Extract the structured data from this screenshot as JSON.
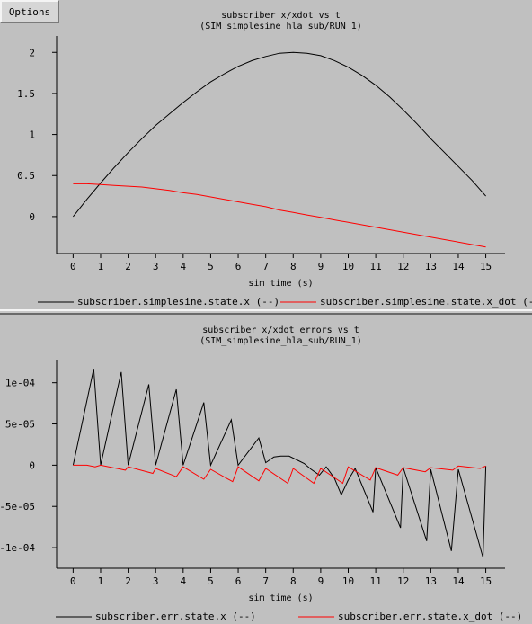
{
  "options_label": "Options",
  "colors": {
    "background": "#c0c0c0",
    "series_1": "#000000",
    "series_2": "#ff0000"
  },
  "chart_data": [
    {
      "type": "line",
      "title": "subscriber x/xdot vs t",
      "subtitle": "(SIM_simplesine_hla_sub/RUN_1)",
      "xlabel": "sim time (s)",
      "ylabel": "",
      "xlim": [
        -0.6,
        15.7
      ],
      "ylim": [
        -0.45,
        2.2
      ],
      "x_ticks": [
        0,
        1,
        2,
        3,
        4,
        5,
        6,
        7,
        8,
        9,
        10,
        11,
        12,
        13,
        14,
        15
      ],
      "x_tick_labels": [
        "0",
        "1",
        "2",
        "3",
        "4",
        "5",
        "6",
        "7",
        "8",
        "9",
        "10",
        "11",
        "12",
        "13",
        "14",
        "15"
      ],
      "y_ticks": [
        0,
        0.5,
        1,
        1.5,
        2
      ],
      "y_tick_labels": [
        "0",
        "0.5",
        "1",
        "1.5",
        "2"
      ],
      "grid": false,
      "legend_position": "bottom",
      "series": [
        {
          "name": "subscriber.simplesine.state.x (--)",
          "color": "#000000",
          "x": [
            0,
            0.5,
            1,
            1.5,
            2,
            2.5,
            3,
            3.5,
            4,
            4.5,
            5,
            5.5,
            6,
            6.5,
            7,
            7.5,
            8,
            8.5,
            9,
            9.5,
            10,
            10.5,
            11,
            11.5,
            12,
            12.5,
            13,
            13.5,
            14,
            14.5,
            15
          ],
          "y": [
            0,
            0.21,
            0.41,
            0.6,
            0.78,
            0.95,
            1.11,
            1.25,
            1.39,
            1.52,
            1.64,
            1.74,
            1.83,
            1.9,
            1.95,
            1.99,
            2.0,
            1.99,
            1.96,
            1.9,
            1.82,
            1.72,
            1.6,
            1.46,
            1.3,
            1.13,
            0.95,
            0.78,
            0.61,
            0.44,
            0.25
          ]
        },
        {
          "name": "subscriber.simplesine.state.x_dot (--)",
          "color": "#ff0000",
          "x": [
            0,
            0.5,
            1,
            1.5,
            2,
            2.5,
            3,
            3.5,
            4,
            4.5,
            5,
            5.5,
            6,
            6.5,
            7,
            7.5,
            8,
            8.5,
            9,
            9.5,
            10,
            10.5,
            11,
            11.5,
            12,
            12.5,
            13,
            13.5,
            14,
            14.5,
            15
          ],
          "y": [
            0.4,
            0.4,
            0.39,
            0.38,
            0.37,
            0.36,
            0.34,
            0.32,
            0.29,
            0.27,
            0.24,
            0.21,
            0.18,
            0.15,
            0.12,
            0.08,
            0.05,
            0.02,
            -0.01,
            -0.04,
            -0.07,
            -0.1,
            -0.13,
            -0.16,
            -0.19,
            -0.22,
            -0.25,
            -0.28,
            -0.31,
            -0.34,
            -0.37
          ]
        }
      ]
    },
    {
      "type": "line",
      "title": "subscriber x/xdot errors vs t",
      "subtitle": "(SIM_simplesine_hla_sub/RUN_1)",
      "xlabel": "sim time (s)",
      "ylabel": "",
      "xlim": [
        -0.6,
        15.7
      ],
      "ylim": [
        -0.000125,
        0.000128
      ],
      "x_ticks": [
        0,
        1,
        2,
        3,
        4,
        5,
        6,
        7,
        8,
        9,
        10,
        11,
        12,
        13,
        14,
        15
      ],
      "x_tick_labels": [
        "0",
        "1",
        "2",
        "3",
        "4",
        "5",
        "6",
        "7",
        "8",
        "9",
        "10",
        "11",
        "12",
        "13",
        "14",
        "15"
      ],
      "y_ticks": [
        -0.0001,
        -5e-05,
        0,
        5e-05,
        0.0001
      ],
      "y_tick_labels": [
        "-1e-04",
        "-5e-05",
        "0",
        "5e-05",
        "1e-04"
      ],
      "grid": false,
      "legend_position": "bottom",
      "series": [
        {
          "name": "subscriber.err.state.x (--)",
          "color": "#000000",
          "x": [
            0,
            0.75,
            1,
            1.75,
            2,
            2.75,
            3,
            3.75,
            4,
            4.75,
            5,
            5.75,
            6,
            6.75,
            7,
            7.3,
            7.55,
            7.85,
            8.1,
            8.4,
            8.65,
            8.95,
            9.2,
            9.5,
            9.75,
            10,
            10.25,
            10.9,
            11,
            11.9,
            12,
            12.85,
            13,
            13.75,
            14,
            14.9,
            15
          ],
          "y": [
            0,
            0.000117,
            0,
            0.000113,
            0,
            9.8e-05,
            0,
            9.2e-05,
            0,
            7.6e-05,
            0,
            5.5e-05,
            0,
            3.3e-05,
            3e-06,
            1e-05,
            1.1e-05,
            1.1e-05,
            7e-06,
            2e-06,
            -5e-06,
            -1.2e-05,
            -2e-06,
            -1.6e-05,
            -3.6e-05,
            -1.8e-05,
            -4e-06,
            -5.7e-05,
            -3e-06,
            -7.6e-05,
            -3e-06,
            -9.2e-05,
            -5e-06,
            -0.000104,
            -5e-06,
            -0.000112,
            -1e-06
          ]
        },
        {
          "name": "subscriber.err.state.x_dot (--)",
          "color": "#ff0000",
          "x": [
            0,
            0.5,
            0.8,
            1,
            1.9,
            2,
            2.9,
            3,
            3.75,
            4,
            4.75,
            5,
            5.8,
            6,
            6.75,
            7,
            7.8,
            8,
            8.75,
            9,
            9.8,
            10,
            10.8,
            11,
            11.8,
            12,
            12.8,
            13,
            13.8,
            14,
            14.8,
            15
          ],
          "y": [
            0,
            0,
            -2e-06,
            0,
            -6e-06,
            -2e-06,
            -1e-05,
            -4e-06,
            -1.4e-05,
            -2e-06,
            -1.7e-05,
            -5e-06,
            -2e-05,
            -2e-06,
            -1.9e-05,
            -4e-06,
            -2.2e-05,
            -4e-06,
            -2.2e-05,
            -4e-06,
            -2.2e-05,
            -2e-06,
            -1.8e-05,
            -3e-06,
            -1.2e-05,
            -3e-06,
            -8e-06,
            -3e-06,
            -6e-06,
            -1e-06,
            -4e-06,
            -1e-06
          ]
        }
      ]
    }
  ]
}
